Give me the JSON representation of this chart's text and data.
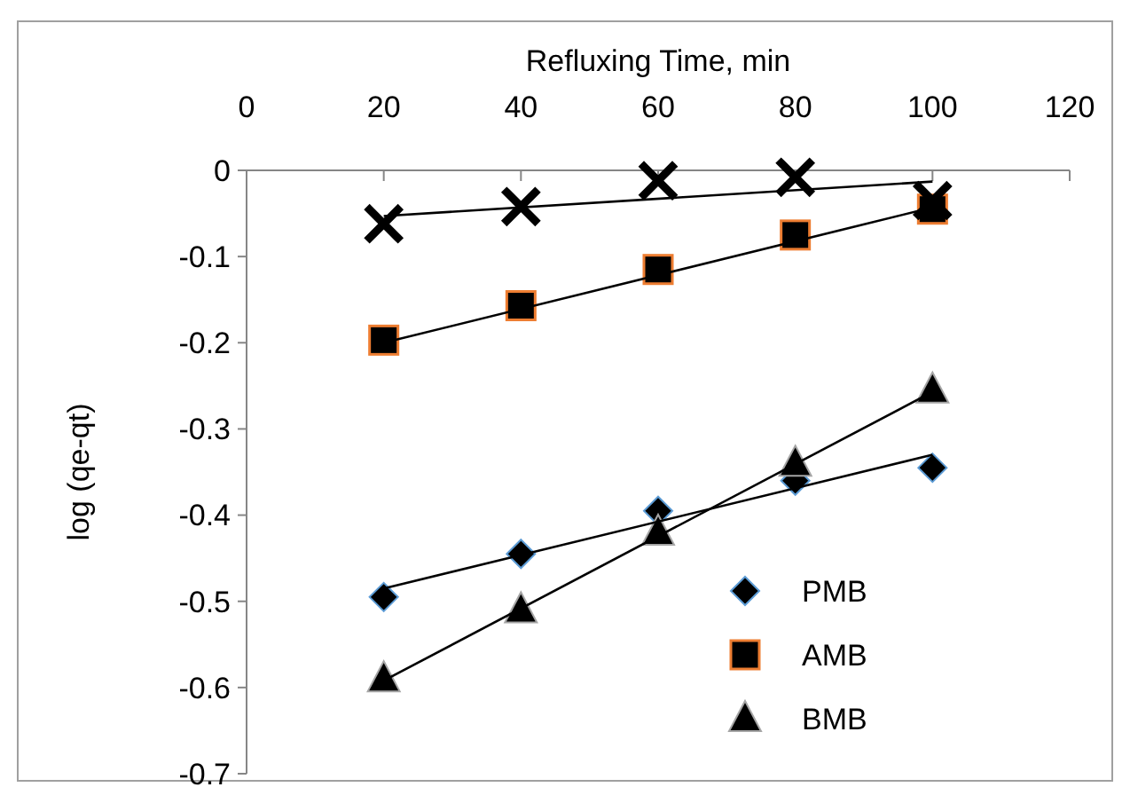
{
  "chart_data": {
    "type": "scatter",
    "xlabel": "Refluxing Time, min",
    "ylabel": "log (qe-qt)",
    "xlim": [
      0,
      120
    ],
    "xticks": [
      0,
      20,
      40,
      60,
      80,
      100,
      120
    ],
    "ylim": [
      -0.7,
      0
    ],
    "yticks": [
      -0.7,
      -0.6,
      -0.5,
      -0.4,
      -0.3,
      -0.2,
      -0.1,
      0
    ],
    "grid": false,
    "legend": "bottom right",
    "series": [
      {
        "name": "PMB",
        "color": "#000000",
        "marker": "diamond",
        "x": [
          20,
          40,
          60,
          80,
          100
        ],
        "values": [
          -0.495,
          -0.445,
          -0.395,
          -0.36,
          -0.345
        ]
      },
      {
        "name": "AMB",
        "color": "#000000",
        "marker": "square",
        "x": [
          20,
          40,
          60,
          80,
          100
        ],
        "values": [
          -0.197,
          -0.157,
          -0.115,
          -0.075,
          -0.045
        ]
      },
      {
        "name": "BMB",
        "color": "#000000",
        "marker": "triangle",
        "x": [
          20,
          40,
          60,
          80,
          100
        ],
        "values": [
          -0.59,
          -0.51,
          -0.42,
          -0.34,
          -0.255
        ]
      },
      {
        "color": "#000000",
        "marker": "cross",
        "x": [
          20,
          40,
          60,
          80,
          100
        ],
        "values": [
          -0.062,
          -0.042,
          -0.012,
          -0.008,
          -0.035
        ]
      },
      {
        "type": "line",
        "color": "#000000",
        "marker": "none",
        "x": [
          20,
          100
        ],
        "values": [
          -0.485,
          -0.33
        ]
      },
      {
        "type": "line",
        "color": "#000000",
        "marker": "none",
        "x": [
          20,
          100
        ],
        "values": [
          -0.2,
          -0.043
        ]
      },
      {
        "type": "line",
        "color": "#000000",
        "marker": "none",
        "x": [
          20,
          100
        ],
        "values": [
          -0.592,
          -0.257
        ]
      },
      {
        "type": "line",
        "color": "#000000",
        "marker": "none",
        "x": [
          20,
          100
        ],
        "values": [
          -0.053,
          -0.013
        ]
      }
    ]
  }
}
